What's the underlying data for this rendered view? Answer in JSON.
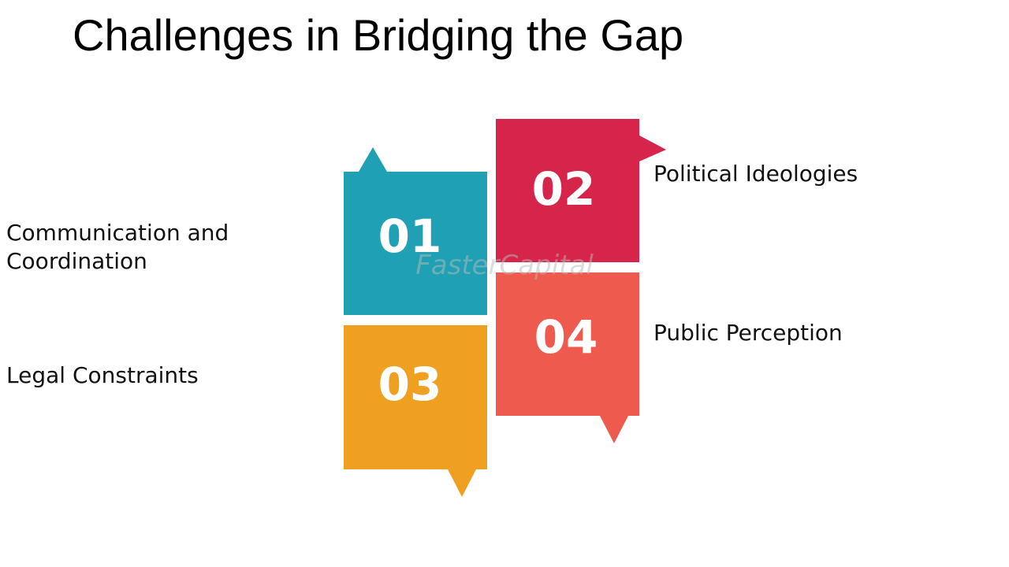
{
  "title": "Challenges in Bridging the Gap",
  "items": [
    {
      "number": "01",
      "label": "Communication and Coordination"
    },
    {
      "number": "02",
      "label": "Political Ideologies"
    },
    {
      "number": "03",
      "label": "Legal Constraints"
    },
    {
      "number": "04",
      "label": "Public Perception"
    }
  ],
  "watermark": "FasterCapital"
}
